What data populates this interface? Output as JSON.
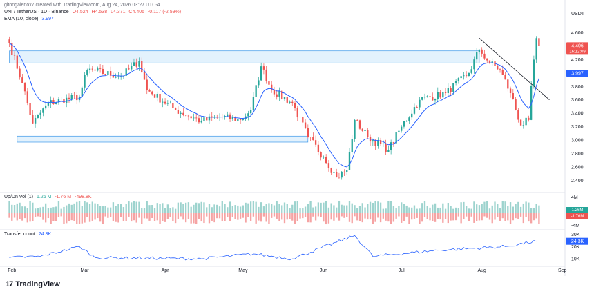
{
  "header": {
    "credit": "gitongaienox7 created with TradingView.com, Aug 24, 2026 03:27 UTC-4",
    "symbol": "UNI / TetherUS · 1D · Binance",
    "ohlc": {
      "open": "O4.524",
      "high": "H4.538",
      "low": "L4.371",
      "close": "C4.406",
      "change": "-0.117 (-2.59%)"
    },
    "ema_label": "EMA (10, close)",
    "ema_value": "3.997",
    "vol_label": "Up/Dn Vol (1)",
    "vol_values": [
      "1.26 M",
      "-1.76 M",
      "-498.8K"
    ],
    "transfer_label": "Transfer count",
    "transfer_value": "24.3K",
    "brand": "TradingView",
    "brand_mark": "17"
  },
  "colors": {
    "up": "#26a69a",
    "down": "#ef5350",
    "ema": "#2962ff",
    "zone_fill": "#e3f2fd",
    "zone_stroke": "#1e88e5",
    "price_badge": "#ef5350",
    "transfer": "#2962ff"
  },
  "chart_data": [
    {
      "type": "candlestick",
      "title": "UNI / TetherUS · 1D · Binance",
      "y_unit": "USDT",
      "y_ticks": [
        2.4,
        2.6,
        2.8,
        3.0,
        3.2,
        3.4,
        3.6,
        3.8,
        4.0,
        4.2,
        4.4,
        4.6
      ],
      "ylim": [
        2.25,
        4.78
      ],
      "x_ticks": [
        "Feb",
        "Mar",
        "Apr",
        "May",
        "Jun",
        "Jul",
        "Aug",
        "Sep"
      ],
      "key_points": [
        {
          "date": "2026-01-31",
          "close": 4.45
        },
        {
          "date": "2026-02-05",
          "close": 3.85
        },
        {
          "date": "2026-02-09",
          "close": 3.25
        },
        {
          "date": "2026-02-15",
          "close": 3.55
        },
        {
          "date": "2026-02-27",
          "close": 3.65
        },
        {
          "date": "2026-03-02",
          "close": 4.05
        },
        {
          "date": "2026-03-15",
          "close": 3.95
        },
        {
          "date": "2026-03-22",
          "close": 4.18
        },
        {
          "date": "2026-03-25",
          "close": 3.75
        },
        {
          "date": "2026-04-05",
          "close": 3.45
        },
        {
          "date": "2026-04-15",
          "close": 3.28
        },
        {
          "date": "2026-04-22",
          "close": 3.35
        },
        {
          "date": "2026-04-30",
          "close": 3.3
        },
        {
          "date": "2026-05-04",
          "close": 3.45
        },
        {
          "date": "2026-05-08",
          "close": 4.1
        },
        {
          "date": "2026-05-12",
          "close": 3.75
        },
        {
          "date": "2026-05-20",
          "close": 3.55
        },
        {
          "date": "2026-05-26",
          "close": 3.05
        },
        {
          "date": "2026-06-01",
          "close": 2.75
        },
        {
          "date": "2026-06-06",
          "close": 2.45
        },
        {
          "date": "2026-06-10",
          "close": 2.55
        },
        {
          "date": "2026-06-13",
          "close": 3.3
        },
        {
          "date": "2026-06-18",
          "close": 3.05
        },
        {
          "date": "2026-06-26",
          "close": 2.85
        },
        {
          "date": "2026-07-01",
          "close": 3.2
        },
        {
          "date": "2026-07-08",
          "close": 3.6
        },
        {
          "date": "2026-07-18",
          "close": 3.7
        },
        {
          "date": "2026-07-27",
          "close": 4.0
        },
        {
          "date": "2026-07-31",
          "close": 4.35
        },
        {
          "date": "2026-08-04",
          "close": 4.15
        },
        {
          "date": "2026-08-08",
          "close": 4.05
        },
        {
          "date": "2026-08-12",
          "close": 3.7
        },
        {
          "date": "2026-08-16",
          "close": 3.22
        },
        {
          "date": "2026-08-19",
          "close": 3.3
        },
        {
          "date": "2026-08-21",
          "close": 4.2
        },
        {
          "date": "2026-08-22",
          "close": 4.52
        },
        {
          "date": "2026-08-23",
          "close": 4.406
        }
      ],
      "last_price": "4.406",
      "countdown": "16:12:09",
      "ema_last": "3.997",
      "zones": [
        {
          "from": "2026-01-31",
          "to": "2026-07-31",
          "y0": 4.15,
          "y1": 4.33
        },
        {
          "from": "2026-02-03",
          "to": "2026-05-26",
          "y0": 2.97,
          "y1": 3.06
        }
      ],
      "trendline": [
        {
          "date": "2026-07-31",
          "y": 4.52
        },
        {
          "date": "2026-08-27",
          "y": 3.6
        }
      ]
    },
    {
      "type": "bar",
      "title": "Up/Dn Vol (1)",
      "y_ticks": [
        "4M",
        "0",
        "-4M"
      ],
      "last_up": "1.26M",
      "last_down": "-1.76M"
    },
    {
      "type": "line",
      "title": "Transfer count",
      "y_ticks": [
        "30K",
        "20K",
        "10K"
      ],
      "last": "24.3K",
      "key_points": [
        {
          "date": "2026-01-31",
          "value": 11
        },
        {
          "date": "2026-02-12",
          "value": 12
        },
        {
          "date": "2026-02-27",
          "value": 20
        },
        {
          "date": "2026-03-05",
          "value": 11
        },
        {
          "date": "2026-04-15",
          "value": 10
        },
        {
          "date": "2026-05-05",
          "value": 14
        },
        {
          "date": "2026-05-20",
          "value": 10
        },
        {
          "date": "2026-06-13",
          "value": 29
        },
        {
          "date": "2026-06-20",
          "value": 12
        },
        {
          "date": "2026-07-15",
          "value": 17
        },
        {
          "date": "2026-08-10",
          "value": 20
        },
        {
          "date": "2026-08-22",
          "value": 24.3
        }
      ]
    }
  ]
}
